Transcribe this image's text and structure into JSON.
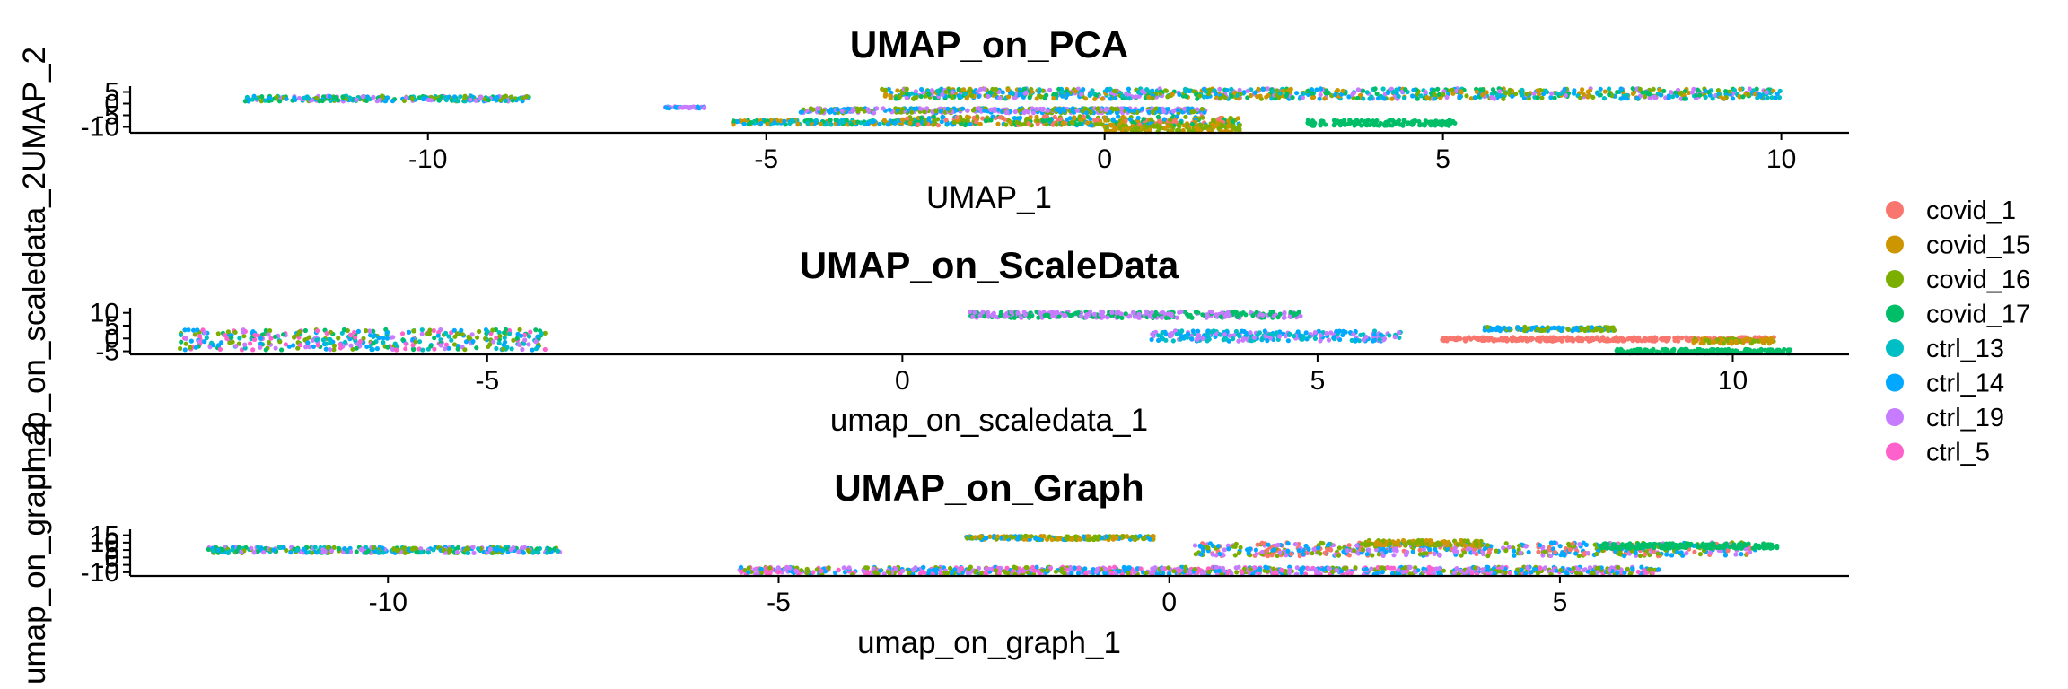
{
  "chart_data": [
    {
      "type": "scatter",
      "title": "UMAP_on_PCA",
      "xlabel": "UMAP_1",
      "ylabel": "UMAP_2",
      "xlim": [
        -14.4,
        11.0
      ],
      "ylim": [
        -12.5,
        7.5
      ],
      "x_ticks": [
        -10,
        -5,
        0,
        5,
        10
      ],
      "y_ticks": [
        -10,
        -5,
        0,
        5
      ],
      "clusters": [
        {
          "x": [
            -12.7,
            -8.5
          ],
          "y": [
            1.0,
            3.3
          ],
          "series": [
            "covid_17",
            "ctrl_13",
            "ctrl_14",
            "ctrl_19",
            "covid_16"
          ]
        },
        {
          "x": [
            -6.5,
            -5.9
          ],
          "y": [
            -2.0,
            -1.3
          ],
          "series": [
            "ctrl_14",
            "ctrl_19"
          ]
        },
        {
          "x": [
            -5.5,
            -2.5
          ],
          "y": [
            -9.0,
            -7.0
          ],
          "series": [
            "covid_15",
            "covid_17",
            "ctrl_13",
            "ctrl_14"
          ]
        },
        {
          "x": [
            -4.5,
            1.5
          ],
          "y": [
            -4.0,
            -2.0
          ],
          "series": [
            "ctrl_19",
            "ctrl_14",
            "covid_16"
          ]
        },
        {
          "x": [
            -3.0,
            2.0
          ],
          "y": [
            -9.5,
            -5.5
          ],
          "series": [
            "covid_1",
            "ctrl_14",
            "covid_17",
            "covid_15",
            "covid_16"
          ]
        },
        {
          "x": [
            0.0,
            2.0
          ],
          "y": [
            -12.0,
            -9.0
          ],
          "series": [
            "covid_15",
            "covid_16"
          ]
        },
        {
          "x": [
            3.0,
            5.2
          ],
          "y": [
            -9.5,
            -7.0
          ],
          "series": [
            "covid_17"
          ]
        },
        {
          "x": [
            -3.3,
            10.0
          ],
          "y": [
            2.0,
            6.5
          ],
          "series": [
            "ctrl_19",
            "ctrl_14",
            "covid_15",
            "covid_16",
            "covid_17",
            "ctrl_13"
          ]
        }
      ]
    },
    {
      "type": "scatter",
      "title": "UMAP_on_ScaleData",
      "xlabel": "umap_on_scaledata_1",
      "ylabel": "umap_on_scaledata_2",
      "xlim": [
        -9.3,
        11.4
      ],
      "ylim": [
        -6.2,
        12.0
      ],
      "x_ticks": [
        -5,
        0,
        5,
        10
      ],
      "y_ticks": [
        -5,
        0,
        5,
        10
      ],
      "clusters": [
        {
          "x": [
            -8.7,
            -4.3
          ],
          "y": [
            -4.5,
            3.5
          ],
          "series": [
            "ctrl_19",
            "ctrl_14",
            "ctrl_13",
            "covid_17",
            "covid_16",
            "ctrl_5"
          ]
        },
        {
          "x": [
            0.8,
            4.8
          ],
          "y": [
            8.0,
            10.5
          ],
          "series": [
            "covid_17",
            "ctrl_19"
          ]
        },
        {
          "x": [
            3.0,
            6.0
          ],
          "y": [
            -1.0,
            3.0
          ],
          "series": [
            "ctrl_19",
            "ctrl_14",
            "ctrl_13"
          ]
        },
        {
          "x": [
            6.5,
            10.5
          ],
          "y": [
            -1.0,
            0.5
          ],
          "series": [
            "covid_1"
          ]
        },
        {
          "x": [
            7.0,
            8.6
          ],
          "y": [
            3.0,
            4.5
          ],
          "series": [
            "covid_16",
            "ctrl_14"
          ]
        },
        {
          "x": [
            9.5,
            10.5
          ],
          "y": [
            -2.0,
            0.0
          ],
          "series": [
            "covid_15",
            "covid_16"
          ]
        },
        {
          "x": [
            8.6,
            10.7
          ],
          "y": [
            -5.8,
            -4.2
          ],
          "series": [
            "covid_17"
          ]
        }
      ]
    },
    {
      "type": "scatter",
      "title": "UMAP_on_Graph",
      "xlabel": "umap_on_graph_1",
      "ylabel": "umap_on_graph_2",
      "xlim": [
        -13.3,
        8.7
      ],
      "ylim": [
        -12.5,
        19.0
      ],
      "x_ticks": [
        -10,
        -5,
        0,
        5
      ],
      "y_ticks": [
        -10,
        -5,
        0,
        5,
        10,
        15
      ],
      "clusters": [
        {
          "x": [
            -12.3,
            -7.8
          ],
          "y": [
            3.0,
            7.0
          ],
          "series": [
            "covid_17",
            "ctrl_13",
            "ctrl_14",
            "ctrl_19",
            "covid_16"
          ]
        },
        {
          "x": [
            -2.6,
            -0.2
          ],
          "y": [
            12.0,
            14.5
          ],
          "series": [
            "covid_16",
            "ctrl_14",
            "covid_15"
          ]
        },
        {
          "x": [
            0.3,
            7.5
          ],
          "y": [
            1.0,
            10.0
          ],
          "series": [
            "ctrl_19",
            "ctrl_14",
            "covid_1",
            "covid_16"
          ]
        },
        {
          "x": [
            2.5,
            4.0
          ],
          "y": [
            8.0,
            11.5
          ],
          "series": [
            "covid_16",
            "covid_15"
          ]
        },
        {
          "x": [
            5.5,
            7.8
          ],
          "y": [
            6.0,
            9.5
          ],
          "series": [
            "covid_17"
          ]
        },
        {
          "x": [
            -5.5,
            6.3
          ],
          "y": [
            -11.5,
            -6.5
          ],
          "series": [
            "ctrl_19",
            "ctrl_14",
            "ctrl_5",
            "covid_16"
          ]
        }
      ]
    }
  ],
  "legend": [
    {
      "name": "covid_1",
      "color": "#F8766D"
    },
    {
      "name": "covid_15",
      "color": "#CD9600"
    },
    {
      "name": "covid_16",
      "color": "#7CAE00"
    },
    {
      "name": "covid_17",
      "color": "#00BE67"
    },
    {
      "name": "ctrl_13",
      "color": "#00BFC4"
    },
    {
      "name": "ctrl_14",
      "color": "#00A9FF"
    },
    {
      "name": "ctrl_19",
      "color": "#C77CFF"
    },
    {
      "name": "ctrl_5",
      "color": "#FF61CC"
    }
  ]
}
